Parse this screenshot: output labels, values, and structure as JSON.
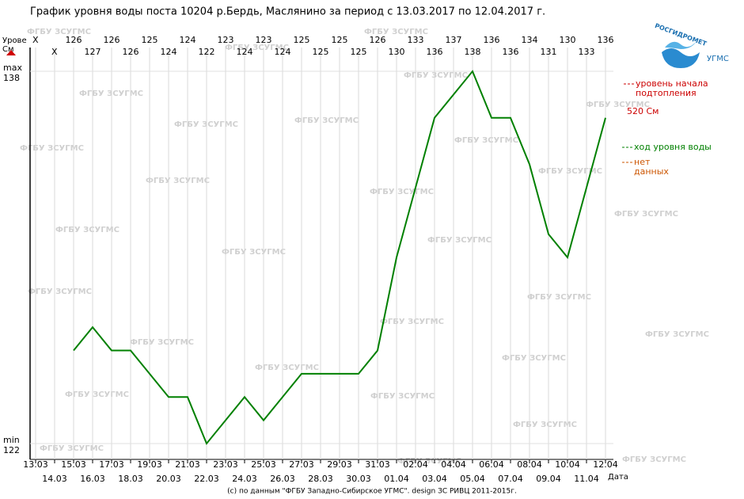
{
  "chart_data": {
    "type": "line",
    "title": "График уровня воды поста 10204 р.Бердь, Маслянино за период с 13.03.2017 по 12.04.2017 г.",
    "y_label": [
      "Урове",
      "См"
    ],
    "x_label": "Дата",
    "categories": [
      "13.03",
      "14.03",
      "15.03",
      "16.03",
      "17.03",
      "18.03",
      "19.03",
      "20.03",
      "21.03",
      "22.03",
      "23.03",
      "24.03",
      "25.03",
      "26.03",
      "27.03",
      "28.03",
      "29.03",
      "30.03",
      "31.03",
      "01.04",
      "02.04",
      "03.04",
      "04.04",
      "05.04",
      "06.04",
      "07.04",
      "08.04",
      "09.04",
      "10.04",
      "11.04",
      "12.04"
    ],
    "series": [
      {
        "name": "ход уровня воды",
        "color": "#008000",
        "values": [
          null,
          null,
          126,
          127,
          126,
          126,
          125,
          124,
          124,
          122,
          123,
          124,
          123,
          124,
          125,
          125,
          125,
          125,
          126,
          130,
          133,
          136,
          137,
          138,
          136,
          136,
          134,
          131,
          130,
          133,
          136
        ],
        "value_labels": [
          "X",
          "X",
          "126",
          "127",
          "126",
          "126",
          "125",
          "124",
          "124",
          "122",
          "123",
          "124",
          "123",
          "124",
          "125",
          "125",
          "125",
          "125",
          "126",
          "130",
          "133",
          "136",
          "137",
          "138",
          "136",
          "136",
          "134",
          "131",
          "130",
          "133",
          "136"
        ]
      }
    ],
    "ylim": [
      122,
      138
    ],
    "yticks": [
      122,
      138
    ],
    "ytick_names": {
      "max": "max",
      "min": "min"
    },
    "flood_level": {
      "name": "уровень начала подтопления",
      "label": "520 См",
      "color": "#cc0000"
    },
    "no_data": {
      "name": "нет данных",
      "color": "#cc5500"
    },
    "watermark": "ФГБУ ЗСУГМС",
    "logo": {
      "name": "РОСГИДРОМЕТ",
      "sub": "УГМС"
    },
    "footer": "(c) по данным \"ФГБУ Западно-Сибирское УГМС\". design ЗС РИВЦ 2011-2015г.",
    "grid": true
  }
}
